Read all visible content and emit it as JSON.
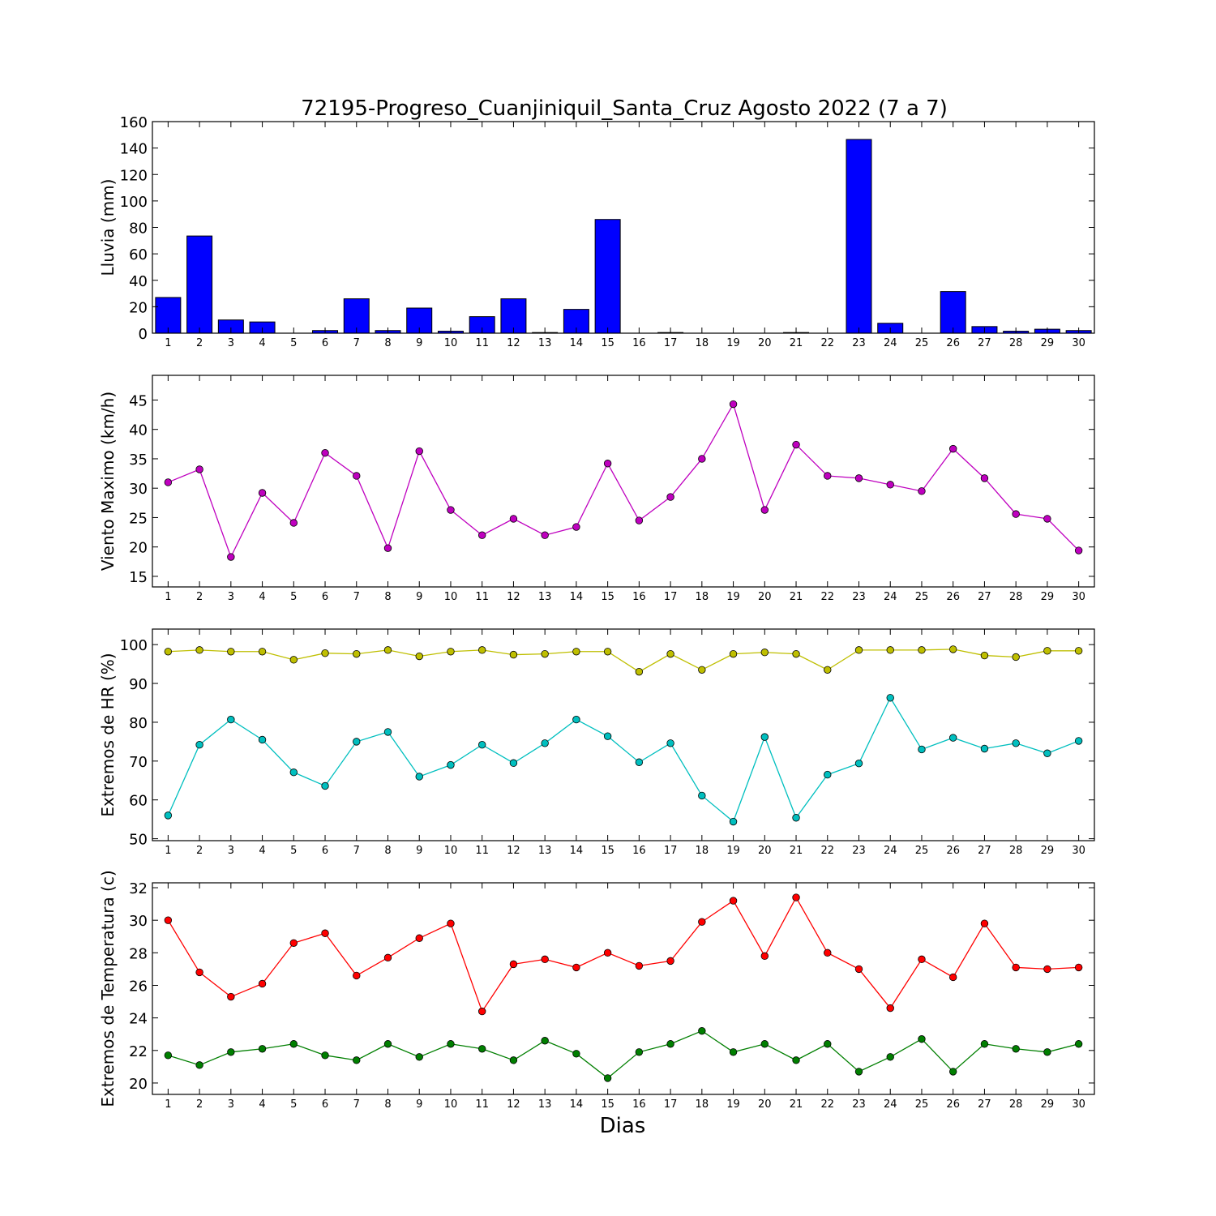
{
  "figure": {
    "title": "72195-Progreso_Cuanjiniquil_Santa_Cruz Agosto 2022  (7 a 7)",
    "xlabel": "Dias"
  },
  "chart_data": [
    {
      "type": "bar",
      "ylabel": "Lluvia (mm)",
      "ylim": [
        0,
        160
      ],
      "yticks": [
        0,
        20,
        40,
        60,
        80,
        100,
        120,
        140,
        160
      ],
      "categories": [
        1,
        2,
        3,
        4,
        5,
        6,
        7,
        8,
        9,
        10,
        11,
        12,
        13,
        14,
        15,
        16,
        17,
        18,
        19,
        20,
        21,
        22,
        23,
        24,
        25,
        26,
        27,
        28,
        29,
        30
      ],
      "series": [
        {
          "color": "#0000ff",
          "values": [
            27.0,
            73.5,
            10.0,
            8.5,
            0.0,
            2.0,
            26.0,
            2.0,
            19.0,
            1.5,
            12.5,
            26.0,
            0.5,
            18.0,
            86.0,
            0.0,
            0.5,
            0.0,
            0.0,
            0.0,
            0.5,
            0.0,
            146.5,
            7.5,
            0.0,
            31.5,
            5.0,
            1.5,
            3.0,
            2.0
          ]
        }
      ]
    },
    {
      "type": "line",
      "ylabel": "Viento Maximo (km/h)",
      "ylim": [
        13.2,
        49.2
      ],
      "yticks": [
        15,
        20,
        25,
        30,
        35,
        40,
        45
      ],
      "x": [
        1,
        2,
        3,
        4,
        5,
        6,
        7,
        8,
        9,
        10,
        11,
        12,
        13,
        14,
        15,
        16,
        17,
        18,
        19,
        20,
        21,
        22,
        23,
        24,
        25,
        26,
        27,
        28,
        29,
        30
      ],
      "series": [
        {
          "color": "#bf00bf",
          "values": [
            31.0,
            33.2,
            18.3,
            29.2,
            24.1,
            36.0,
            32.1,
            19.8,
            36.3,
            26.3,
            22.0,
            24.8,
            22.0,
            23.4,
            34.2,
            24.5,
            28.5,
            35.0,
            44.3,
            26.3,
            37.4,
            32.1,
            31.7,
            30.6,
            29.5,
            36.7,
            31.7,
            25.6,
            24.8,
            19.4
          ]
        }
      ]
    },
    {
      "type": "line",
      "ylabel": "Extremos de HR (%)",
      "ylim": [
        49.5,
        104
      ],
      "yticks": [
        50,
        60,
        70,
        80,
        90,
        100
      ],
      "x": [
        1,
        2,
        3,
        4,
        5,
        6,
        7,
        8,
        9,
        10,
        11,
        12,
        13,
        14,
        15,
        16,
        17,
        18,
        19,
        20,
        21,
        22,
        23,
        24,
        25,
        26,
        27,
        28,
        29,
        30
      ],
      "series": [
        {
          "color": "#bfbf00",
          "values": [
            98.2,
            98.6,
            98.2,
            98.2,
            96.1,
            97.8,
            97.6,
            98.6,
            97.0,
            98.2,
            98.6,
            97.4,
            97.6,
            98.2,
            98.2,
            93.0,
            97.6,
            93.5,
            97.6,
            98.0,
            97.6,
            93.5,
            98.6,
            98.6,
            98.6,
            98.8,
            97.2,
            96.8,
            98.4,
            98.4
          ]
        },
        {
          "color": "#00bfbf",
          "values": [
            56.0,
            74.2,
            80.7,
            75.5,
            67.1,
            63.6,
            75.0,
            77.5,
            66.0,
            69.0,
            74.2,
            69.5,
            74.6,
            80.7,
            76.4,
            69.7,
            74.6,
            61.1,
            54.4,
            76.2,
            55.4,
            66.5,
            69.4,
            86.3,
            73.0,
            76.0,
            73.2,
            74.6,
            72.0,
            75.2
          ]
        }
      ]
    },
    {
      "type": "line",
      "ylabel": "Extremos de Temperatura (c)",
      "ylim": [
        19.3,
        32.3
      ],
      "yticks": [
        20,
        22,
        24,
        26,
        28,
        30,
        32
      ],
      "x": [
        1,
        2,
        3,
        4,
        5,
        6,
        7,
        8,
        9,
        10,
        11,
        12,
        13,
        14,
        15,
        16,
        17,
        18,
        19,
        20,
        21,
        22,
        23,
        24,
        25,
        26,
        27,
        28,
        29,
        30
      ],
      "series": [
        {
          "color": "#ff0000",
          "values": [
            30.0,
            26.8,
            25.3,
            26.1,
            28.6,
            29.2,
            26.6,
            27.7,
            28.9,
            29.8,
            24.4,
            27.3,
            27.6,
            27.1,
            28.0,
            27.2,
            27.5,
            29.9,
            31.2,
            27.8,
            31.4,
            28.0,
            27.0,
            24.6,
            27.6,
            26.5,
            29.8,
            27.1,
            27.0,
            27.1
          ]
        },
        {
          "color": "#007f00",
          "values": [
            21.7,
            21.1,
            21.9,
            22.1,
            22.4,
            21.7,
            21.4,
            22.4,
            21.6,
            22.4,
            22.1,
            21.4,
            22.6,
            21.8,
            20.3,
            21.9,
            22.4,
            23.2,
            21.9,
            22.4,
            21.4,
            22.4,
            20.7,
            21.6,
            22.7,
            20.7,
            22.4,
            22.1,
            21.9,
            22.4
          ]
        }
      ]
    }
  ]
}
